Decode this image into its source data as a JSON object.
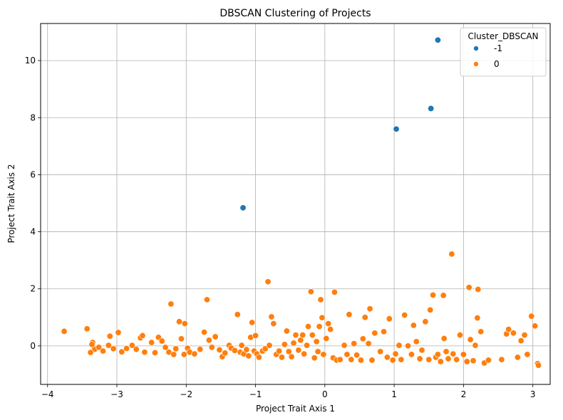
{
  "chart_data": {
    "type": "scatter",
    "title": "DBSCAN Clustering of Projects",
    "xlabel": "Project Trait Axis 1",
    "ylabel": "Project Trait Axis 2",
    "xlim": [
      -4.1,
      3.25
    ],
    "ylim": [
      -1.35,
      11.3
    ],
    "xticks": [
      -4,
      -3,
      -2,
      -1,
      0,
      1,
      2,
      3
    ],
    "yticks": [
      0,
      2,
      4,
      6,
      8,
      10
    ],
    "grid": true,
    "legend": {
      "title": "Cluster_DBSCAN",
      "placement": "top-right"
    },
    "series": [
      {
        "name": "-1",
        "color": "#1f77b4",
        "points": [
          [
            1.63,
            10.72
          ],
          [
            1.53,
            8.32
          ],
          [
            1.03,
            7.6
          ],
          [
            -1.18,
            4.84
          ]
        ]
      },
      {
        "name": "0",
        "color": "#ff7f0e",
        "points": [
          [
            -3.76,
            0.51
          ],
          [
            -3.43,
            0.6
          ],
          [
            -3.35,
            0.12
          ],
          [
            -3.32,
            -0.12
          ],
          [
            -3.38,
            -0.23
          ],
          [
            -3.36,
            0.05
          ],
          [
            -3.26,
            -0.05
          ],
          [
            -3.2,
            -0.18
          ],
          [
            -3.12,
            0.02
          ],
          [
            -3.1,
            0.34
          ],
          [
            -3.05,
            -0.1
          ],
          [
            -2.98,
            0.47
          ],
          [
            -2.93,
            -0.21
          ],
          [
            -2.86,
            -0.09
          ],
          [
            -2.78,
            0.02
          ],
          [
            -2.72,
            -0.12
          ],
          [
            -2.66,
            0.28
          ],
          [
            -2.63,
            0.36
          ],
          [
            -2.6,
            -0.22
          ],
          [
            -2.5,
            0.12
          ],
          [
            -2.45,
            -0.24
          ],
          [
            -2.4,
            0.3
          ],
          [
            -2.35,
            0.17
          ],
          [
            -2.3,
            -0.05
          ],
          [
            -2.25,
            -0.22
          ],
          [
            -2.22,
            1.47
          ],
          [
            -2.18,
            -0.3
          ],
          [
            -2.15,
            -0.1
          ],
          [
            -2.1,
            0.85
          ],
          [
            -2.07,
            0.25
          ],
          [
            -2.03,
            -0.3
          ],
          [
            -2.02,
            0.78
          ],
          [
            -1.98,
            -0.08
          ],
          [
            -1.95,
            -0.22
          ],
          [
            -1.88,
            -0.28
          ],
          [
            -1.8,
            -0.12
          ],
          [
            -1.74,
            0.48
          ],
          [
            -1.7,
            1.62
          ],
          [
            -1.67,
            0.2
          ],
          [
            -1.63,
            -0.05
          ],
          [
            -1.58,
            0.32
          ],
          [
            -1.52,
            -0.14
          ],
          [
            -1.48,
            -0.38
          ],
          [
            -1.44,
            -0.25
          ],
          [
            -1.38,
            0.02
          ],
          [
            -1.35,
            -0.08
          ],
          [
            -1.3,
            -0.16
          ],
          [
            -1.26,
            1.1
          ],
          [
            -1.22,
            -0.22
          ],
          [
            -1.2,
            0.02
          ],
          [
            -1.17,
            -0.28
          ],
          [
            -1.13,
            -0.13
          ],
          [
            -1.1,
            -0.35
          ],
          [
            -1.07,
            0.3
          ],
          [
            -1.05,
            0.82
          ],
          [
            -1.02,
            -0.18
          ],
          [
            -1.0,
            0.36
          ],
          [
            -0.98,
            -0.28
          ],
          [
            -0.95,
            -0.4
          ],
          [
            -0.9,
            -0.18
          ],
          [
            -0.86,
            -0.1
          ],
          [
            -0.82,
            2.25
          ],
          [
            -0.8,
            0.02
          ],
          [
            -0.77,
            1.02
          ],
          [
            -0.74,
            0.78
          ],
          [
            -0.7,
            -0.3
          ],
          [
            -0.66,
            -0.18
          ],
          [
            -0.62,
            -0.4
          ],
          [
            -0.58,
            0.05
          ],
          [
            -0.55,
            0.52
          ],
          [
            -0.52,
            -0.2
          ],
          [
            -0.48,
            -0.38
          ],
          [
            -0.45,
            0.1
          ],
          [
            -0.42,
            0.38
          ],
          [
            -0.38,
            -0.15
          ],
          [
            -0.35,
            0.2
          ],
          [
            -0.32,
            0.38
          ],
          [
            -0.3,
            -0.28
          ],
          [
            -0.26,
            0.02
          ],
          [
            -0.24,
            0.68
          ],
          [
            -0.2,
            1.9
          ],
          [
            -0.18,
            0.38
          ],
          [
            -0.15,
            -0.42
          ],
          [
            -0.12,
            0.15
          ],
          [
            -0.1,
            -0.2
          ],
          [
            -0.08,
            0.68
          ],
          [
            -0.06,
            1.62
          ],
          [
            -0.04,
            0.99
          ],
          [
            -0.02,
            -0.3
          ],
          [
            0.02,
            0.26
          ],
          [
            0.05,
            0.78
          ],
          [
            0.08,
            0.58
          ],
          [
            0.12,
            -0.42
          ],
          [
            0.14,
            1.88
          ],
          [
            0.17,
            -0.5
          ],
          [
            0.22,
            -0.48
          ],
          [
            0.28,
            0.02
          ],
          [
            0.32,
            -0.3
          ],
          [
            0.35,
            1.1
          ],
          [
            0.38,
            -0.48
          ],
          [
            0.42,
            0.08
          ],
          [
            0.46,
            -0.32
          ],
          [
            0.52,
            -0.5
          ],
          [
            0.55,
            0.25
          ],
          [
            0.58,
            1.0
          ],
          [
            0.63,
            0.08
          ],
          [
            0.65,
            1.3
          ],
          [
            0.68,
            -0.5
          ],
          [
            0.72,
            0.45
          ],
          [
            0.8,
            -0.2
          ],
          [
            0.85,
            0.5
          ],
          [
            0.9,
            -0.4
          ],
          [
            0.93,
            0.95
          ],
          [
            0.98,
            -0.5
          ],
          [
            1.02,
            -0.28
          ],
          [
            1.07,
            0.02
          ],
          [
            1.1,
            -0.48
          ],
          [
            1.15,
            1.08
          ],
          [
            1.2,
            0.0
          ],
          [
            1.25,
            -0.3
          ],
          [
            1.28,
            0.72
          ],
          [
            1.32,
            0.15
          ],
          [
            1.37,
            -0.45
          ],
          [
            1.4,
            -0.15
          ],
          [
            1.45,
            0.85
          ],
          [
            1.5,
            -0.48
          ],
          [
            1.52,
            1.26
          ],
          [
            1.56,
            1.78
          ],
          [
            1.6,
            -0.4
          ],
          [
            1.63,
            -0.3
          ],
          [
            1.67,
            -0.55
          ],
          [
            1.71,
            1.77
          ],
          [
            1.72,
            0.26
          ],
          [
            1.75,
            -0.2
          ],
          [
            1.78,
            -0.45
          ],
          [
            1.83,
            3.22
          ],
          [
            1.85,
            -0.28
          ],
          [
            1.9,
            -0.48
          ],
          [
            1.95,
            0.38
          ],
          [
            2.0,
            -0.3
          ],
          [
            2.05,
            -0.55
          ],
          [
            2.08,
            2.05
          ],
          [
            2.1,
            0.22
          ],
          [
            2.14,
            -0.52
          ],
          [
            2.17,
            0.02
          ],
          [
            2.2,
            0.98
          ],
          [
            2.21,
            1.98
          ],
          [
            2.25,
            0.5
          ],
          [
            2.3,
            -0.6
          ],
          [
            2.36,
            -0.5
          ],
          [
            2.55,
            -0.48
          ],
          [
            2.62,
            0.42
          ],
          [
            2.65,
            0.58
          ],
          [
            2.72,
            0.45
          ],
          [
            2.78,
            -0.4
          ],
          [
            2.83,
            0.18
          ],
          [
            2.88,
            0.38
          ],
          [
            2.92,
            -0.3
          ],
          [
            2.98,
            1.04
          ],
          [
            3.03,
            0.7
          ],
          [
            3.07,
            -0.62
          ],
          [
            3.08,
            -0.68
          ]
        ]
      }
    ]
  }
}
